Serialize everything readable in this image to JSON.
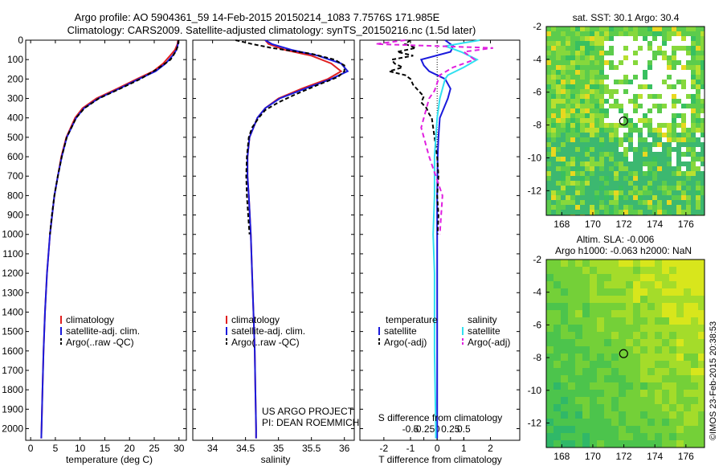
{
  "title": {
    "line1": "Argo profile: AO 5904361_59 14-Feb-2015 20150214_1083 7.7576S 171.985E",
    "line2": "Climatology: CARS2009. Satellite-adjusted climatology: synTS_20150216.nc (1.5d later)"
  },
  "footer": {
    "project": "US ARGO PROJECT",
    "pi": "PI: DEAN ROEMMICH",
    "stamp": "©IMOS 23-Feb-2015 20:38:53"
  },
  "colors": {
    "climatology": "#e02020",
    "satellite": "#1a1adc",
    "argo": "#000000",
    "sal_satellite": "#30e0f0",
    "sal_argo": "#e020e0"
  },
  "chart_data": [
    {
      "type": "line",
      "xlabel": "temperature (deg C)",
      "ylabel": "",
      "xlim": [
        -1,
        31.5
      ],
      "ylim": [
        2060,
        0
      ],
      "xticks": [
        "0",
        "5",
        "10",
        "15",
        "20",
        "25",
        "30"
      ],
      "yticks": [
        "0",
        "100",
        "200",
        "300",
        "400",
        "500",
        "600",
        "700",
        "800",
        "900",
        "1000",
        "1100",
        "1200",
        "1300",
        "1400",
        "1500",
        "1600",
        "1700",
        "1800",
        "1900",
        "2000"
      ],
      "legend": [
        "climatology",
        "satellite-adj. clim.",
        "Argo(..raw -QC)"
      ],
      "series": [
        {
          "name": "climatology",
          "depth": [
            0,
            20,
            50,
            80,
            120,
            160,
            200,
            250,
            300,
            350,
            400,
            500,
            600,
            700,
            800,
            1000,
            1200,
            1400,
            1600,
            1800,
            2000,
            2050
          ],
          "values": [
            29.8,
            29.7,
            29.2,
            28.2,
            26.8,
            24.8,
            21.5,
            17.5,
            13.3,
            10.5,
            9.0,
            7.2,
            6.2,
            5.5,
            4.8,
            3.9,
            3.3,
            2.9,
            2.6,
            2.4,
            2.2,
            2.15
          ]
        },
        {
          "name": "satellite-adj. clim.",
          "depth": [
            0,
            20,
            50,
            80,
            120,
            160,
            200,
            250,
            300,
            350,
            400,
            500,
            600,
            700,
            800,
            1000,
            1200,
            1400,
            1600,
            1800,
            2000,
            2050
          ],
          "values": [
            29.9,
            29.8,
            29.5,
            28.7,
            27.3,
            25.3,
            21.9,
            17.9,
            13.7,
            10.8,
            9.2,
            7.3,
            6.3,
            5.5,
            4.8,
            3.9,
            3.3,
            2.9,
            2.6,
            2.4,
            2.2,
            2.15
          ]
        },
        {
          "name": "Argo(..raw -QC)",
          "depth": [
            0,
            30,
            60,
            100,
            150,
            200,
            250,
            300,
            350,
            400,
            500,
            600,
            700,
            800,
            900,
            1000
          ],
          "values": [
            29.9,
            29.8,
            29.3,
            28.3,
            25.5,
            22.2,
            18.1,
            13.8,
            10.9,
            9.2,
            7.3,
            6.3,
            5.5,
            4.8,
            4.3,
            3.9
          ]
        }
      ]
    },
    {
      "type": "line",
      "xlabel": "salinity",
      "ylabel": "",
      "xlim": [
        33.7,
        36.15
      ],
      "ylim": [
        2060,
        0
      ],
      "xticks": [
        "34",
        "34.5",
        "35",
        "35.5",
        "36"
      ],
      "legend": [
        "climatology",
        "satellite-adj. clim.",
        "Argo(..raw -QC)"
      ],
      "series": [
        {
          "name": "climatology",
          "depth": [
            0,
            20,
            50,
            80,
            120,
            160,
            200,
            250,
            300,
            350,
            400,
            500,
            600,
            700,
            800,
            1000,
            1200,
            1400,
            1600,
            1800,
            2000,
            2050
          ],
          "values": [
            34.8,
            34.85,
            35.1,
            35.5,
            35.8,
            35.95,
            35.75,
            35.35,
            35.0,
            34.8,
            34.68,
            34.56,
            34.53,
            34.53,
            34.55,
            34.58,
            34.6,
            34.62,
            34.64,
            34.65,
            34.66,
            34.66
          ]
        },
        {
          "name": "satellite-adj. clim.",
          "depth": [
            0,
            20,
            50,
            80,
            120,
            160,
            200,
            250,
            300,
            350,
            400,
            500,
            600,
            700,
            800,
            1000,
            1200,
            1400,
            1600,
            1800,
            2000,
            2050
          ],
          "values": [
            34.8,
            34.9,
            35.2,
            35.6,
            35.95,
            36.05,
            35.8,
            35.4,
            35.02,
            34.8,
            34.68,
            34.56,
            34.53,
            34.53,
            34.55,
            34.58,
            34.6,
            34.62,
            34.64,
            34.65,
            34.66,
            34.66
          ]
        },
        {
          "name": "Argo(..raw -QC)",
          "depth": [
            0,
            20,
            40,
            70,
            100,
            130,
            160,
            190,
            230,
            280,
            320,
            360,
            400,
            450,
            500,
            600,
            700,
            800,
            900,
            1000
          ],
          "values": [
            34.35,
            34.6,
            34.9,
            35.5,
            35.85,
            36.0,
            36.0,
            35.9,
            35.6,
            35.25,
            35.0,
            34.8,
            34.7,
            34.6,
            34.55,
            34.52,
            34.51,
            34.52,
            34.54,
            34.56
          ]
        }
      ]
    },
    {
      "type": "line",
      "xlabel": "T difference from climatology",
      "top_xlabel": "S difference from climatology",
      "xlim": [
        -2.9,
        3.1
      ],
      "ylim": [
        2060,
        0
      ],
      "xticks": [
        "-2",
        "-1",
        "0",
        "1",
        "2"
      ],
      "top_xticks": [
        "-0.5",
        "-0.25",
        "0",
        "0.25",
        "0.5"
      ],
      "legend_groups": [
        "temperature",
        "salinity"
      ],
      "legend": [
        "satellite",
        "Argo(-adj)",
        "satellite",
        "Argo(-adj)"
      ],
      "series": [
        {
          "name": "satellite",
          "depth": [
            0,
            30,
            60,
            100,
            130,
            160,
            200,
            250,
            300,
            400,
            500,
            600,
            800,
            1000,
            1200,
            1600,
            2000,
            2050
          ],
          "values": [
            0.3,
            0.6,
            0.5,
            -0.6,
            -0.5,
            -0.3,
            0.3,
            0.5,
            0.4,
            0.1,
            0.05,
            0.02,
            0.0,
            0.0,
            0.0,
            0.0,
            0.0,
            0.0
          ]
        },
        {
          "name": "Argo(-adj)",
          "depth": [
            0,
            20,
            40,
            60,
            80,
            100,
            120,
            140,
            160,
            180,
            200,
            230,
            260,
            290,
            320,
            350,
            380,
            400,
            450,
            500,
            600,
            700,
            800,
            900,
            1000
          ],
          "values": [
            -1.0,
            -1.2,
            -0.8,
            -1.5,
            -0.9,
            -1.7,
            -1.6,
            -1.3,
            -1.8,
            -1.2,
            -1.0,
            -0.9,
            -0.7,
            -0.5,
            -0.6,
            -0.4,
            -0.3,
            -0.2,
            -0.15,
            -0.1,
            0.0,
            0.05,
            0.0,
            0.05,
            0.02
          ]
        },
        {
          "name": "satellite",
          "depth": [
            0,
            30,
            60,
            100,
            140,
            180,
            200,
            250,
            300,
            400,
            500,
            600,
            800,
            1000,
            1200,
            1600,
            2000,
            2050
          ],
          "values": [
            1.6,
            0.3,
            0.9,
            1.5,
            1.0,
            0.4,
            0.3,
            0.2,
            0.1,
            0.0,
            -0.05,
            -0.1,
            -0.1,
            -0.15,
            -0.1,
            -0.1,
            -0.05,
            -0.05
          ]
        },
        {
          "name": "Argo(-adj)",
          "depth": [
            0,
            20,
            40,
            60,
            100,
            140,
            180,
            220,
            260,
            300,
            350,
            400,
            450,
            500,
            600,
            800,
            1000
          ],
          "values": [
            -1.2,
            -2.3,
            2.1,
            1.0,
            1.4,
            0.6,
            0.1,
            0.0,
            -0.1,
            -0.3,
            -0.4,
            -0.5,
            -0.6,
            -0.5,
            -0.3,
            0.2,
            0.1
          ]
        }
      ]
    },
    {
      "type": "heatmap",
      "title": "sat. SST: 30.1  Argo: 30.4",
      "xlim": [
        167,
        177.2
      ],
      "ylim": [
        -13.5,
        -2
      ],
      "xticks": [
        "168",
        "170",
        "172",
        "174",
        "176"
      ],
      "yticks": [
        "-2",
        "-4",
        "-6",
        "-8",
        "-10",
        "-12"
      ],
      "marker": {
        "lon": 171.985,
        "lat": -7.7576
      }
    },
    {
      "type": "heatmap",
      "title_line1": "Altim. SLA: -0.006",
      "title_line2": "Argo h1000: -0.063 h2000: NaN",
      "xlim": [
        167,
        177.2
      ],
      "ylim": [
        -13.5,
        -2
      ],
      "xticks": [
        "168",
        "170",
        "172",
        "174",
        "176"
      ],
      "yticks": [
        "-2",
        "-4",
        "-6",
        "-8",
        "-10",
        "-12"
      ],
      "marker": {
        "lon": 171.985,
        "lat": -7.7576
      }
    }
  ]
}
